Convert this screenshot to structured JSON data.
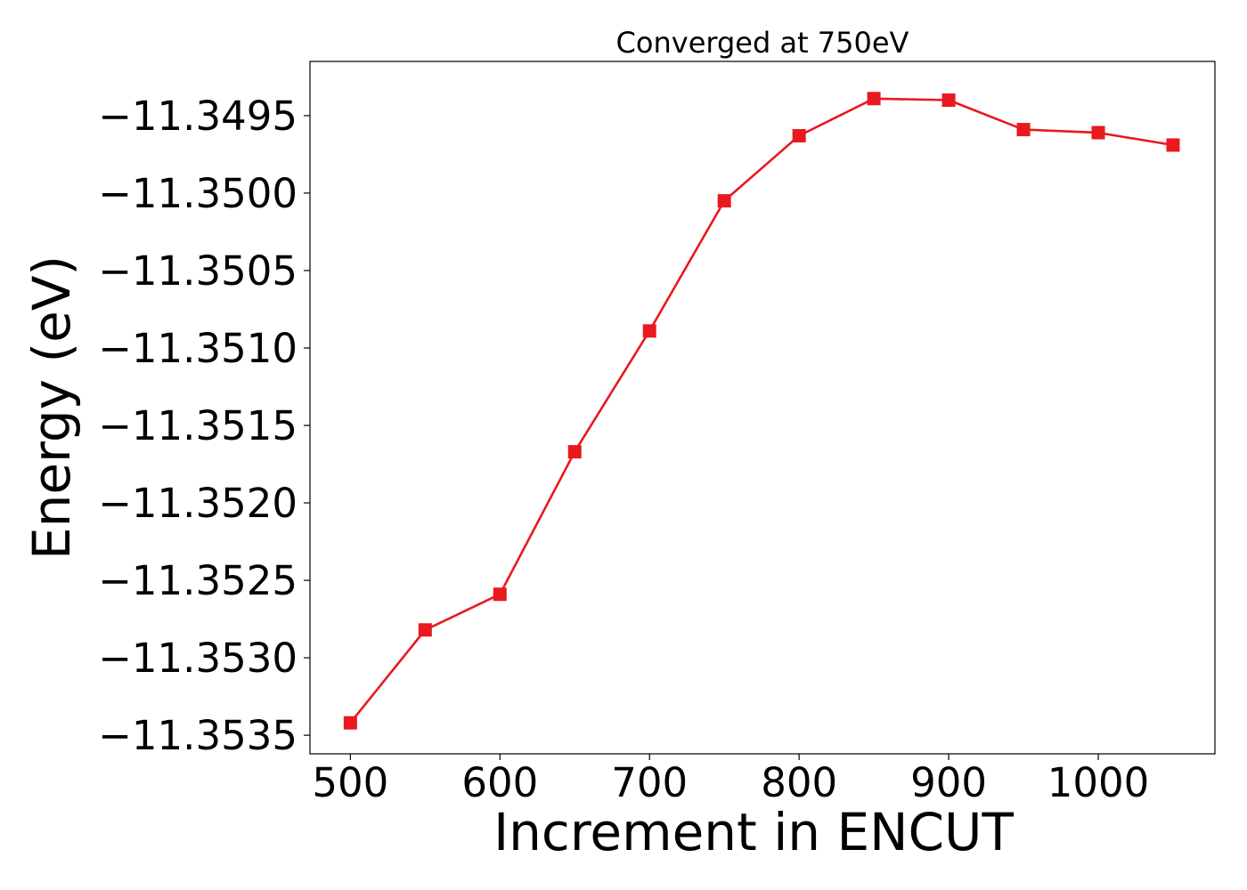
{
  "chart_data": {
    "type": "line",
    "title": "Converged at 750eV",
    "xlabel": "Increment in ENCUT",
    "ylabel": "Energy (eV)",
    "x": [
      500,
      550,
      600,
      650,
      700,
      750,
      800,
      850,
      900,
      950,
      1000,
      1050
    ],
    "series": [
      {
        "values": [
          -11.35342,
          -11.35282,
          -11.35259,
          -11.35167,
          -11.35089,
          -11.35005,
          -11.34963,
          -11.34939,
          -11.3494,
          -11.34959,
          -11.34961,
          -11.34969
        ],
        "color": "#e8191f",
        "marker": "square",
        "marker_icon": "square-marker-icon"
      }
    ],
    "xlim": [
      473,
      1078
    ],
    "ylim": [
      -11.35362,
      -11.34915
    ],
    "x_ticks": [
      500,
      600,
      700,
      800,
      900,
      1000
    ],
    "x_tick_labels": [
      "500",
      "600",
      "700",
      "800",
      "900",
      "1000"
    ],
    "y_ticks": [
      -11.3535,
      -11.353,
      -11.3525,
      -11.352,
      -11.3515,
      -11.351,
      -11.3505,
      -11.35,
      -11.3495
    ],
    "y_tick_labels": [
      "−11.3535",
      "−11.3530",
      "−11.3525",
      "−11.3520",
      "−11.3515",
      "−11.3510",
      "−11.3505",
      "−11.3500",
      "−11.3495"
    ],
    "grid": false,
    "legend": "none"
  }
}
